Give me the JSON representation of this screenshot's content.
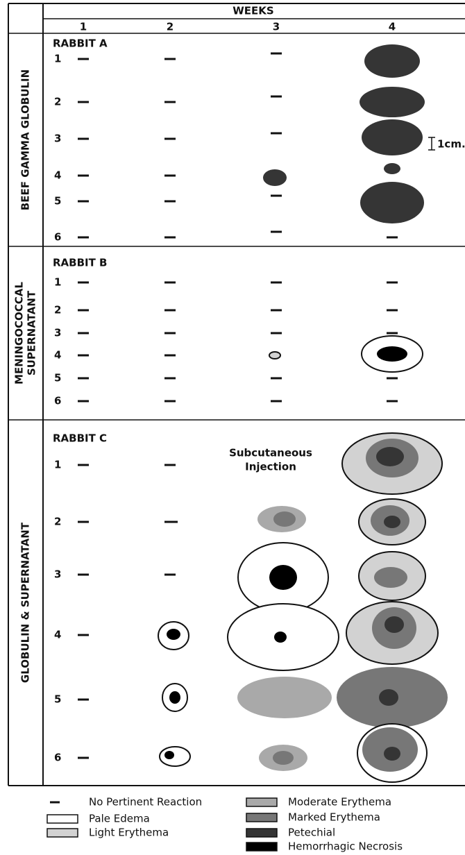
{
  "header": {
    "title": "WEEKS",
    "weeks": [
      "1",
      "2",
      "3",
      "4"
    ]
  },
  "sections": [
    {
      "label": [
        "BEEF GAMMA GLOBULIN"
      ],
      "rabbit": "RABBIT A",
      "rows": [
        "1",
        "2",
        "3",
        "4",
        "5",
        "6"
      ]
    },
    {
      "label": [
        "MENINGOCOCCAL",
        "SUPERNATANT"
      ],
      "rabbit": "RABBIT B",
      "rows": [
        "1",
        "2",
        "3",
        "4",
        "5",
        "6"
      ]
    },
    {
      "label": [
        "GLOBULIN & SUPERNATANT"
      ],
      "rabbit": "RABBIT C",
      "rows": [
        "1",
        "2",
        "3",
        "4",
        "5",
        "6"
      ]
    }
  ],
  "annotations": {
    "scale": "1cm.",
    "injection": [
      "Subcutaneous",
      "Injection"
    ]
  },
  "legend": [
    "No Pertinent Reaction",
    "Pale Edema",
    "Light Erythema",
    "Moderate Erythema",
    "Marked Erythema",
    "Petechial",
    "Hemorrhagic Necrosis"
  ]
}
